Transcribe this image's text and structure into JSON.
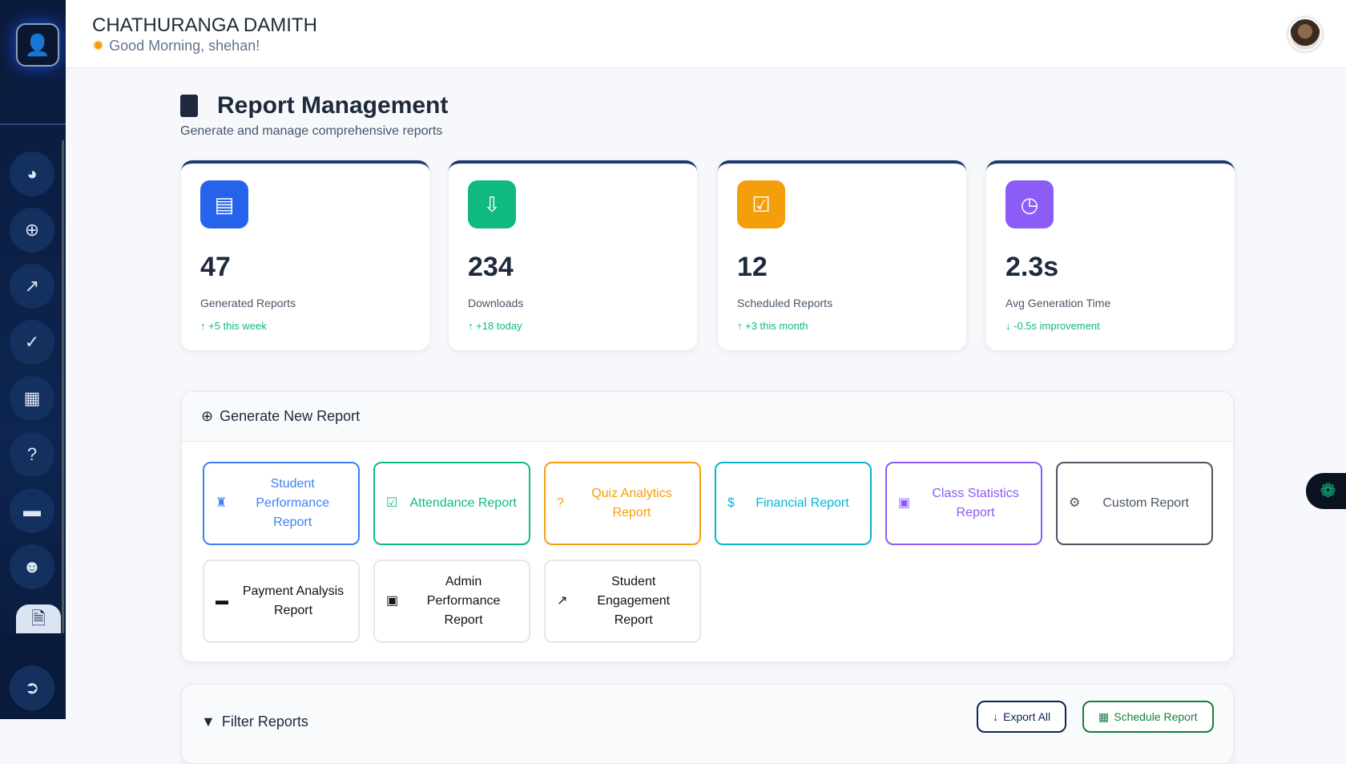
{
  "header": {
    "name": "CHATHURANGA DAMITH",
    "greeting": "Good Morning, shehan!"
  },
  "page": {
    "title": "Report Management",
    "subtitle": "Generate and manage comprehensive reports"
  },
  "stats": [
    {
      "value": "47",
      "label": "Generated Reports",
      "trend": "+5 this week",
      "icon": "chart-bar-icon",
      "color": "#2563eb",
      "direction": "up"
    },
    {
      "value": "234",
      "label": "Downloads",
      "trend": "+18 today",
      "icon": "download-icon",
      "color": "#10b981",
      "direction": "up"
    },
    {
      "value": "12",
      "label": "Scheduled Reports",
      "trend": "+3 this month",
      "icon": "calendar-check-icon",
      "color": "#f59e0b",
      "direction": "up"
    },
    {
      "value": "2.3s",
      "label": "Avg Generation Time",
      "trend": "-0.5s improvement",
      "icon": "clock-icon",
      "color": "#8b5cf6",
      "direction": "down"
    }
  ],
  "generate": {
    "title": "Generate New Report",
    "reports": [
      {
        "label": "Student Performance Report",
        "icon": "graduate-icon",
        "color": "#3b82f6"
      },
      {
        "label": "Attendance Report",
        "icon": "calendar-check-icon",
        "color": "#10b981"
      },
      {
        "label": "Quiz Analytics Report",
        "icon": "question-icon",
        "color": "#f59e0b"
      },
      {
        "label": "Financial Report",
        "icon": "dollar-icon",
        "color": "#06b6d4"
      },
      {
        "label": "Class Statistics Report",
        "icon": "chalkboard-icon",
        "color": "#8b5cf6"
      },
      {
        "label": "Custom Report",
        "icon": "gears-icon",
        "color": "#4b5563"
      },
      {
        "label": "Payment Analysis Report",
        "icon": "credit-card-icon",
        "color": "#111111"
      },
      {
        "label": "Admin Performance Report",
        "icon": "chalkboard-user-icon",
        "color": "#111111"
      },
      {
        "label": "Student Engagement Report",
        "icon": "line-chart-icon",
        "color": "#111111"
      }
    ]
  },
  "filter": {
    "title": "Filter Reports",
    "export_label": "Export All",
    "schedule_label": "Schedule Report"
  }
}
